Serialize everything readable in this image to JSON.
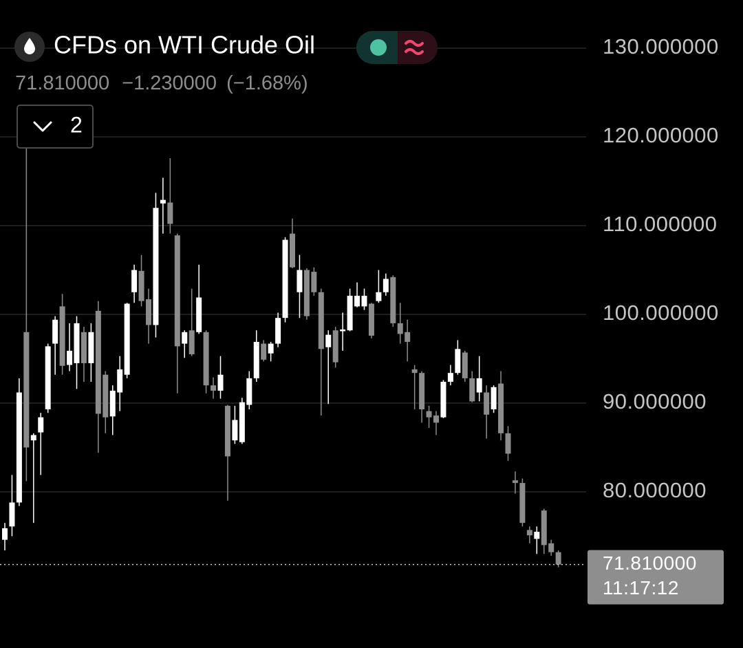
{
  "chart_data": {
    "type": "candlestick",
    "title": "CFDs on WTI Crude Oil",
    "last_price": {
      "value": 71.81,
      "label": "71.810000"
    },
    "change": "−1.230000",
    "change_percent": "(−1.68%)",
    "last_time": "11:17:12",
    "indicator_count": 2,
    "up_color": "#ffffff",
    "down_color": "#8c8c8c",
    "grid": true,
    "ylim": [
      67,
      135
    ],
    "yticks": [
      {
        "value": 130,
        "label": "130.000000"
      },
      {
        "value": 120,
        "label": "120.000000"
      },
      {
        "value": 110,
        "label": "110.000000"
      },
      {
        "value": 100,
        "label": "100.000000"
      },
      {
        "value": 90,
        "label": "90.000000"
      },
      {
        "value": 80,
        "label": "80.000000"
      }
    ],
    "open": [
      74.6,
      76.1,
      78.8,
      98.0,
      85.8,
      86.7,
      89.3,
      96.7,
      100.9,
      94.3,
      94.5,
      98.0,
      94.5,
      100.4,
      93.2,
      88.5,
      91.2,
      93.2,
      102.5,
      104.9,
      101.7,
      98.8,
      112.5,
      112.6,
      108.9,
      96.7,
      98.2,
      98.0,
      98.0,
      92.0,
      91.4,
      89.7,
      85.8,
      85.6,
      89.8,
      92.8,
      96.7,
      95.6,
      96.7,
      99.6,
      109.1,
      102.5,
      105.0,
      104.8,
      102.5,
      96.3,
      98.2,
      98.1,
      98.2,
      100.9,
      100.9,
      101.2,
      101.5,
      102.5,
      104.2,
      99.0,
      98.0,
      93.8,
      93.4,
      89.1,
      88.6,
      88.4,
      92.4,
      93.4,
      95.7,
      92.8,
      91.2,
      91.2,
      89.3,
      92.2,
      86.6,
      81.3,
      81.0,
      75.7,
      74.7,
      77.9,
      74.2,
      73.2
    ],
    "high": [
      76.5,
      81.9,
      92.8,
      118.8,
      86.6,
      88.9,
      96.7,
      99.8,
      102.3,
      99.0,
      99.8,
      98.6,
      99.0,
      101.5,
      93.6,
      92.0,
      95.3,
      101.3,
      105.6,
      106.7,
      102.9,
      113.7,
      115.4,
      117.6,
      109.1,
      98.2,
      102.9,
      105.6,
      98.2,
      92.9,
      95.3,
      89.8,
      89.7,
      90.6,
      93.6,
      98.2,
      97.1,
      96.9,
      100.2,
      108.7,
      110.8,
      106.7,
      105.2,
      105.3,
      102.9,
      98.2,
      98.6,
      100.2,
      102.9,
      103.6,
      102.9,
      101.3,
      105.0,
      104.6,
      104.4,
      101.3,
      99.4,
      94.3,
      93.6,
      89.7,
      89.1,
      92.6,
      94.3,
      97.1,
      95.9,
      93.6,
      95.3,
      92.0,
      92.0,
      93.6,
      87.4,
      82.3,
      81.5,
      76.1,
      76.1,
      78.1,
      74.6,
      73.4
    ],
    "low": [
      73.4,
      75.0,
      78.4,
      81.2,
      76.5,
      81.9,
      88.9,
      93.2,
      93.2,
      93.6,
      91.6,
      92.4,
      92.4,
      84.4,
      86.6,
      86.4,
      89.1,
      92.8,
      101.3,
      100.9,
      96.7,
      97.4,
      109.1,
      109.1,
      91.1,
      95.1,
      95.3,
      97.8,
      91.1,
      90.5,
      90.5,
      79.0,
      85.4,
      85.4,
      89.3,
      92.4,
      94.7,
      94.7,
      96.3,
      99.1,
      105.2,
      99.6,
      99.4,
      102.1,
      88.6,
      89.9,
      94.0,
      95.9,
      98.1,
      100.8,
      100.5,
      97.3,
      101.3,
      102.1,
      98.6,
      96.7,
      94.7,
      89.3,
      87.8,
      87.2,
      86.4,
      88.3,
      92.0,
      93.2,
      92.4,
      90.1,
      90.2,
      86.0,
      88.9,
      85.8,
      83.5,
      79.8,
      76.1,
      74.2,
      73.0,
      73.0,
      72.8,
      71.5
    ],
    "close": [
      75.9,
      78.8,
      91.2,
      85.0,
      86.4,
      88.4,
      96.4,
      99.4,
      94.2,
      95.9,
      99.0,
      94.5,
      98.0,
      88.8,
      88.4,
      91.4,
      93.8,
      101.2,
      105.0,
      101.5,
      98.8,
      112.0,
      112.9,
      110.2,
      96.4,
      98.0,
      95.5,
      101.9,
      92.0,
      91.4,
      93.2,
      84.0,
      88.1,
      90.1,
      92.8,
      96.9,
      94.9,
      96.7,
      99.6,
      108.4,
      105.3,
      105.0,
      99.8,
      102.5,
      96.1,
      97.7,
      94.6,
      98.3,
      102.1,
      102.1,
      102.1,
      97.6,
      102.5,
      104.0,
      99.0,
      97.8,
      96.9,
      93.4,
      89.3,
      88.4,
      87.8,
      92.4,
      93.4,
      96.1,
      92.8,
      90.2,
      92.8,
      88.7,
      91.8,
      86.6,
      84.3,
      81.0,
      76.5,
      75.1,
      75.5,
      74.0,
      73.2,
      71.81
    ]
  }
}
